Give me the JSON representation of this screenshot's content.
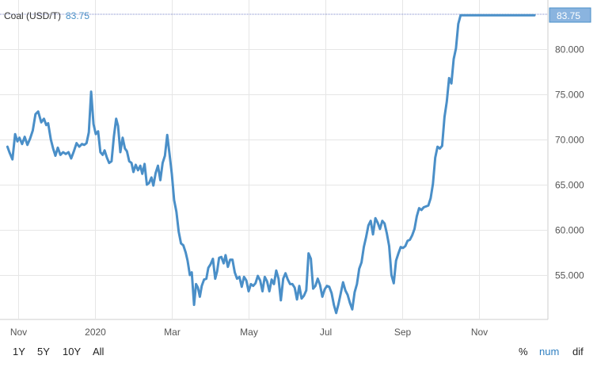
{
  "chart_data": {
    "type": "line",
    "title": "Coal (USD/T)",
    "last_value": "83.75",
    "last_value_flag": "83.75",
    "ylim": [
      50.5,
      84.5
    ],
    "y_ticks": [
      {
        "value": 55,
        "label": "55.000"
      },
      {
        "value": 60,
        "label": "60.000"
      },
      {
        "value": 65,
        "label": "65.000"
      },
      {
        "value": 70,
        "label": "70.000"
      },
      {
        "value": 75,
        "label": "75.000"
      },
      {
        "value": 80,
        "label": "80.000"
      }
    ],
    "x_ticks": [
      {
        "month": 1,
        "label": "Nov"
      },
      {
        "month": 3,
        "label": "2020"
      },
      {
        "month": 5,
        "label": "Mar"
      },
      {
        "month": 7,
        "label": "May"
      },
      {
        "month": 9,
        "label": "Jul"
      },
      {
        "month": 11,
        "label": "Sep"
      },
      {
        "month": 13,
        "label": "Nov"
      }
    ],
    "xlim": [
      0.72,
      14.55
    ],
    "grid": true,
    "legend": "none",
    "series_color": "#4a8fc8",
    "series": [
      {
        "x": [
          0.72,
          0.78,
          0.85,
          0.92,
          0.98,
          1.03,
          1.1,
          1.17,
          1.24,
          1.31,
          1.38,
          1.45,
          1.52,
          1.6,
          1.67,
          1.73,
          1.78,
          1.85,
          1.91,
          1.97,
          2.03,
          2.1,
          2.17,
          2.24,
          2.31,
          2.38,
          2.45,
          2.52,
          2.59,
          2.66,
          2.72,
          2.78,
          2.84,
          2.9,
          2.96,
          3.02,
          3.08,
          3.14,
          3.2,
          3.25,
          3.31,
          3.37,
          3.43,
          3.49,
          3.55,
          3.6,
          3.66,
          3.72,
          3.78,
          3.83,
          3.89,
          3.95,
          4.0,
          4.06,
          4.12,
          4.18,
          4.23,
          4.29,
          4.35,
          4.41,
          4.47,
          4.52,
          4.58,
          4.64,
          4.7,
          4.76,
          4.82,
          4.88,
          4.94,
          5.0,
          5.06,
          5.12,
          5.18,
          5.24,
          5.3,
          5.36,
          5.41,
          5.47,
          5.52,
          5.58,
          5.63,
          5.68,
          5.73,
          5.78,
          5.84,
          5.9,
          5.95,
          6.01,
          6.07,
          6.13,
          6.18,
          6.23,
          6.29,
          6.35,
          6.4,
          6.46,
          6.52,
          6.58,
          6.64,
          6.7,
          6.76,
          6.82,
          6.88,
          6.94,
          7.0,
          7.06,
          7.12,
          7.18,
          7.24,
          7.3,
          7.36,
          7.42,
          7.48,
          7.54,
          7.6,
          7.66,
          7.72,
          7.78,
          7.84,
          7.9,
          7.96,
          8.02,
          8.08,
          8.14,
          8.2,
          8.26,
          8.32,
          8.38,
          8.44,
          8.5,
          8.56,
          8.62,
          8.68,
          8.74,
          8.8,
          8.86,
          8.92,
          8.98,
          9.04,
          9.1,
          9.16,
          9.22,
          9.28,
          9.34,
          9.4,
          9.46,
          9.52,
          9.58,
          9.64,
          9.7,
          9.76,
          9.82,
          9.88,
          9.94,
          10.0,
          10.06,
          10.12,
          10.18,
          10.24,
          10.3,
          10.36,
          10.42,
          10.48,
          10.54,
          10.6,
          10.66,
          10.72,
          10.78,
          10.84,
          10.9,
          10.96,
          11.02,
          11.08,
          11.14,
          11.2,
          11.26,
          11.32,
          11.38,
          11.44,
          11.5,
          11.56,
          11.62,
          11.68,
          11.74,
          11.8,
          11.86,
          11.92,
          11.98,
          12.04,
          12.1,
          12.16,
          12.22,
          12.28,
          12.34,
          12.4,
          12.46,
          12.52,
          12.58,
          12.64,
          12.7,
          12.76,
          12.82,
          12.88,
          12.94,
          13.0,
          13.06,
          13.12,
          13.18,
          13.24,
          13.3,
          13.36,
          13.42,
          13.48,
          13.54,
          13.6,
          13.66,
          13.72,
          13.78,
          13.84,
          13.9,
          13.96,
          14.02,
          14.08,
          14.14,
          14.2,
          14.26,
          14.32,
          14.38,
          14.44,
          14.5,
          14.55
        ],
        "values": [
          69.2,
          68.5,
          67.8,
          70.6,
          69.8,
          70.2,
          69.5,
          70.3,
          69.4,
          70.1,
          71.0,
          72.8,
          73.1,
          71.9,
          72.3,
          71.6,
          71.8,
          70.0,
          69.0,
          68.2,
          69.1,
          68.3,
          68.6,
          68.4,
          68.6,
          67.9,
          68.7,
          69.6,
          69.2,
          69.5,
          69.4,
          69.6,
          70.8,
          75.3,
          71.7,
          70.6,
          70.9,
          68.6,
          68.3,
          68.8,
          68.0,
          67.4,
          67.6,
          70.3,
          72.3,
          71.5,
          68.6,
          70.2,
          69.0,
          68.7,
          67.6,
          67.4,
          66.4,
          67.2,
          66.6,
          67.1,
          66.2,
          67.3,
          65.0,
          65.2,
          65.8,
          64.9,
          66.3,
          67.1,
          65.5,
          67.4,
          68.2,
          70.5,
          68.4,
          66.2,
          63.3,
          62.0,
          59.8,
          58.5,
          58.3,
          57.5,
          56.6,
          55.0,
          55.3,
          51.7,
          54.0,
          53.6,
          52.6,
          53.8,
          54.5,
          54.6,
          55.8,
          56.2,
          56.8,
          54.6,
          55.4,
          56.9,
          57.0,
          56.3,
          57.2,
          55.9,
          56.7,
          56.7,
          55.3,
          54.6,
          54.8,
          53.7,
          54.8,
          54.4,
          53.2,
          54.0,
          53.8,
          54.1,
          54.9,
          54.4,
          53.2,
          54.8,
          54.3,
          53.2,
          54.5,
          54.0,
          55.5,
          54.6,
          52.2,
          54.6,
          55.2,
          54.5,
          54.0,
          54.0,
          53.6,
          52.3,
          53.8,
          52.4,
          52.7,
          53.3,
          57.4,
          56.8,
          53.5,
          53.8,
          54.6,
          53.9,
          52.6,
          53.4,
          53.8,
          53.7,
          53.0,
          51.7,
          50.8,
          51.8,
          53.0,
          54.2,
          53.3,
          52.8,
          51.9,
          51.2,
          53.1,
          54.0,
          55.7,
          56.4,
          58.1,
          59.2,
          60.5,
          61.0,
          59.5,
          61.3,
          60.8,
          60.1,
          61.0,
          60.7,
          59.6,
          58.2,
          55.0,
          54.1,
          56.6,
          57.4,
          58.1,
          58.0,
          58.2,
          58.8,
          58.9,
          59.4,
          60.1,
          61.5,
          62.4,
          62.2,
          62.5,
          62.6,
          62.7,
          63.5,
          65.1,
          68.0,
          69.2,
          69.0,
          69.3,
          72.5,
          74.2,
          76.8,
          76.2,
          78.9,
          80.1,
          82.8,
          83.75,
          83.75,
          83.75,
          83.75,
          83.75,
          83.75,
          83.75,
          83.75,
          83.75,
          83.75,
          83.75,
          83.75,
          83.75,
          83.75,
          83.75,
          83.75,
          83.75,
          83.75,
          83.75,
          83.75,
          83.75,
          83.75,
          83.75,
          83.75,
          83.75,
          83.75,
          83.75,
          83.75,
          83.75,
          83.75,
          83.75,
          83.75,
          83.75,
          83.75,
          83.75
        ]
      }
    ]
  },
  "controls": {
    "ranges": [
      "1Y",
      "5Y",
      "10Y",
      "All"
    ],
    "modes": [
      "%",
      "num",
      "dif"
    ],
    "active_mode": "num",
    "active_color": "#2f7fc1",
    "inactive_color": "#222222"
  }
}
